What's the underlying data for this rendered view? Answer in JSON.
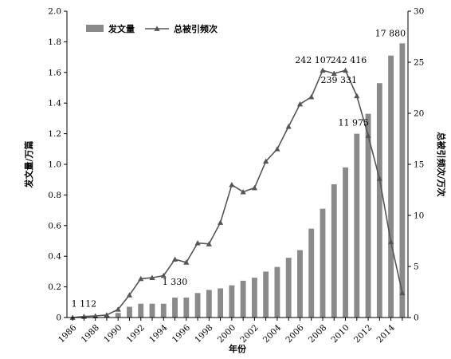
{
  "chart_data": {
    "type": "bar",
    "xlabel": "年份",
    "ylabel_left": "发文量/万篇",
    "ylabel_right": "总被引频次/万次",
    "ylim_left": [
      0,
      2.0
    ],
    "ylim_right": [
      0,
      30
    ],
    "yticks_left": [
      "0",
      "0.2",
      "0.4",
      "0.6",
      "0.8",
      "1.0",
      "1.2",
      "1.4",
      "1.6",
      "1.8",
      "2.0"
    ],
    "yticks_right": [
      "0",
      "5",
      "10",
      "15",
      "20",
      "25",
      "30"
    ],
    "x": [
      1986,
      1987,
      1988,
      1989,
      1990,
      1991,
      1992,
      1993,
      1994,
      1995,
      1996,
      1997,
      1998,
      1999,
      2000,
      2001,
      2002,
      2003,
      2004,
      2005,
      2006,
      2007,
      2008,
      2009,
      2010,
      2011,
      2012,
      2013,
      2014,
      2015
    ],
    "xtick_labels": [
      "1986",
      "1988",
      "1990",
      "1992",
      "1994",
      "1996",
      "1998",
      "2000",
      "2002",
      "2004",
      "2006",
      "2008",
      "2010",
      "2012",
      "2014"
    ],
    "grid": false,
    "legend_position": "top-left",
    "series": [
      {
        "name": "发文量",
        "type": "bar",
        "axis": "left",
        "color": "#8a8a8a",
        "values": [
          0.0,
          0.0,
          0.0,
          0.01,
          0.03,
          0.07,
          0.09,
          0.09,
          0.09,
          0.13,
          0.13,
          0.16,
          0.18,
          0.19,
          0.21,
          0.24,
          0.26,
          0.3,
          0.33,
          0.39,
          0.44,
          0.58,
          0.71,
          0.87,
          0.98,
          1.2,
          1.33,
          1.53,
          1.71,
          1.79
        ]
      },
      {
        "name": "总被引频次",
        "type": "line",
        "axis": "right",
        "color": "#555555",
        "marker": "triangle",
        "values": [
          0.0,
          0.1,
          0.15,
          0.25,
          0.8,
          2.2,
          3.8,
          3.9,
          4.1,
          5.7,
          5.4,
          7.3,
          7.2,
          9.3,
          13.0,
          12.3,
          12.7,
          15.3,
          16.5,
          18.7,
          20.9,
          21.6,
          24.2,
          23.9,
          24.2,
          21.7,
          17.8,
          13.6,
          7.4,
          2.4
        ]
      }
    ],
    "annotations": [
      {
        "text": "1 112",
        "x": 1987,
        "series": 1
      },
      {
        "text": "1 330",
        "x": 1995,
        "series": 0
      },
      {
        "text": "242 107",
        "x": 2008,
        "series": 1
      },
      {
        "text": "239 331",
        "x": 2009,
        "series": 1
      },
      {
        "text": "242 416",
        "x": 2010,
        "series": 1
      },
      {
        "text": "11 975",
        "x": 2011,
        "series": 0
      },
      {
        "text": "17 880",
        "x": 2015,
        "series": 0
      }
    ]
  }
}
